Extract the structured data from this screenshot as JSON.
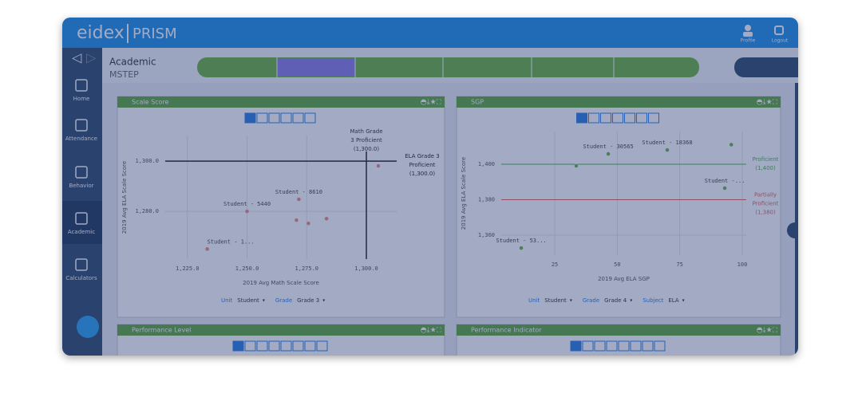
{
  "header": {
    "logo_left": "eidex",
    "logo_right": "PRISM",
    "profile": "Profile",
    "logout": "Logout"
  },
  "sidebar": {
    "items": [
      "Home",
      "Attendance",
      "Behavior",
      "Academic",
      "Calculators"
    ]
  },
  "breadcrumb": {
    "title": "Academic",
    "subtitle": "MSTEP"
  },
  "panels": [
    {
      "title": "Scale Score",
      "chart": {
        "type": "scatter",
        "xlabel": "2019 Avg Math Scale Score",
        "ylabel": "2019 Avg ELA Scale Score",
        "xlim": [
          1215.7,
          1312.7
        ],
        "ylim": [
          1261,
          1310.2
        ],
        "xticks": [
          {
            "value": 1225,
            "label": "1,225.0"
          },
          {
            "value": 1250,
            "label": "1,250.0"
          },
          {
            "value": 1275,
            "label": "1,275.0"
          },
          {
            "value": 1300,
            "label": "1,300.0"
          }
        ],
        "yticks": [
          {
            "value": 1280,
            "label": "1,280.0"
          },
          {
            "value": 1300,
            "label": "1,300.0"
          }
        ],
        "x": [
          1250,
          1271.7,
          1233.3,
          1270.7,
          1275.7,
          1283.3,
          1305
        ],
        "y": [
          1280,
          1284.8,
          1265,
          1276.5,
          1275.2,
          1277.1,
          1298.1
        ],
        "labels": [
          "Student - 5440",
          "Student - 8610",
          "Student - 1...",
          null,
          null,
          null,
          null
        ],
        "reference_lines": [
          {
            "axis": "x",
            "value": 1300,
            "color": "#222222",
            "label": [
              "Math Grade",
              "3 Proficient",
              "(1,300.0)"
            ]
          },
          {
            "axis": "y",
            "value": 1300,
            "color": "#222222",
            "label": [
              "ELA Grade 3",
              "Proficient",
              "(1,300.0)"
            ]
          }
        ]
      },
      "filters": [
        {
          "label": "Unit",
          "value": "Student"
        },
        {
          "label": "Grade",
          "value": "Grade 3"
        }
      ]
    },
    {
      "title": "SGP",
      "chart": {
        "type": "scatter",
        "xlabel": "2019 Avg ELA SGP",
        "ylabel": "2019 Avg ELA Scale Score",
        "xlim": [
          3.6,
          101.6
        ],
        "ylim": [
          1348.8,
          1418.4
        ],
        "xticks": [
          25,
          50,
          75,
          100
        ],
        "yticks": [
          {
            "value": 1360,
            "label": "1,360"
          },
          {
            "value": 1380,
            "label": "1,380"
          },
          {
            "value": 1400,
            "label": "1,400"
          }
        ],
        "x": [
          46.4,
          70,
          93,
          11.6,
          33.6,
          95.6
        ],
        "y": [
          1405.8,
          1408,
          1386.5,
          1352.8,
          1399.1,
          1411
        ],
        "labels": [
          "Student - 30565",
          "Student - 18368",
          "Student -...",
          "Student - 53...",
          null,
          null
        ],
        "reference_lines": [
          {
            "axis": "y",
            "value": 1400,
            "color": "#4caf50",
            "label": [
              "Proficient",
              "(1,400)"
            ]
          },
          {
            "axis": "y",
            "value": 1380,
            "color": "#e06060",
            "label": [
              "Partially",
              "Proficient",
              "(1,380)"
            ]
          }
        ]
      },
      "filters": [
        {
          "label": "Unit",
          "value": "Student"
        },
        {
          "label": "Grade",
          "value": "Grade 4"
        },
        {
          "label": "Subject",
          "value": "ELA"
        }
      ]
    }
  ],
  "bottom_panels": [
    {
      "title": "Performance Level"
    },
    {
      "title": "Performance Indicator"
    }
  ]
}
